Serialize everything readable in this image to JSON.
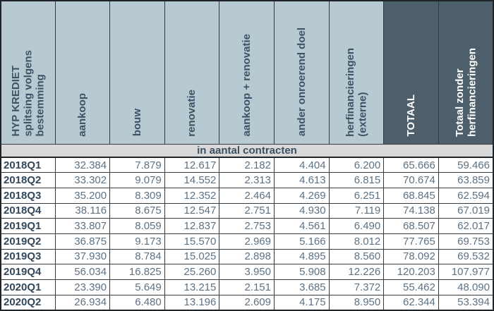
{
  "table": {
    "title": "HYP KREDIET splitsing volgens bestemming",
    "columns": [
      {
        "label": "HYP KREDIET\nsplitsing volgens\nbestemming",
        "dark": false
      },
      {
        "label": "aankoop",
        "dark": false
      },
      {
        "label": "bouw",
        "dark": false
      },
      {
        "label": "renovatie",
        "dark": false
      },
      {
        "label": "aankoop + renovatie",
        "dark": false
      },
      {
        "label": "ander onroerend doel",
        "dark": false
      },
      {
        "label": "herfinancieringen\n(externe)",
        "dark": false
      },
      {
        "label": "TOTAAL",
        "dark": true
      },
      {
        "label": "Totaal zonder\nherfinancieringen",
        "dark": true
      }
    ],
    "banner": "in aantal contracten",
    "rows": [
      {
        "label": "2018Q1",
        "values": [
          "32.384",
          "7.879",
          "12.617",
          "2.182",
          "4.404",
          "6.200",
          "65.666",
          "59.466"
        ]
      },
      {
        "label": "2018Q2",
        "values": [
          "33.302",
          "9.079",
          "14.552",
          "2.313",
          "4.613",
          "6.815",
          "70.674",
          "63.859"
        ]
      },
      {
        "label": "2018Q3",
        "values": [
          "35.200",
          "8.309",
          "12.352",
          "2.464",
          "4.269",
          "6.251",
          "68.845",
          "62.594"
        ]
      },
      {
        "label": "2018Q4",
        "values": [
          "38.116",
          "8.675",
          "12.547",
          "2.751",
          "4.930",
          "7.119",
          "74.138",
          "67.019"
        ]
      },
      {
        "label": "2019Q1",
        "values": [
          "33.807",
          "8.059",
          "12.837",
          "2.753",
          "4.561",
          "6.490",
          "68.507",
          "62.017"
        ]
      },
      {
        "label": "2019Q2",
        "values": [
          "36.875",
          "9.173",
          "15.570",
          "2.969",
          "5.166",
          "8.012",
          "77.765",
          "69.753"
        ]
      },
      {
        "label": "2019Q3",
        "values": [
          "37.930",
          "8.784",
          "15.025",
          "2.898",
          "4.895",
          "8.560",
          "78.092",
          "69.532"
        ]
      },
      {
        "label": "2019Q4",
        "values": [
          "56.034",
          "16.825",
          "25.260",
          "3.950",
          "5.908",
          "12.226",
          "120.203",
          "107.977"
        ]
      },
      {
        "label": "2020Q1",
        "values": [
          "23.390",
          "5.649",
          "13.215",
          "2.151",
          "3.685",
          "7.372",
          "55.462",
          "48.090"
        ]
      },
      {
        "label": "2020Q2",
        "values": [
          "26.934",
          "6.480",
          "13.196",
          "2.609",
          "4.175",
          "8.950",
          "62.344",
          "53.394"
        ]
      }
    ]
  },
  "colors": {
    "light_header_bg": "#b7c9d1",
    "dark_header_bg": "#4d5f6b",
    "banner_bg": "#d9d9d9",
    "border_dark": "#1f2429",
    "grid_line": "#333a40",
    "header_text": "#3d5266",
    "banner_text": "#3d5060",
    "row_label_text": "#32475a",
    "value_text": "#5d7284"
  }
}
